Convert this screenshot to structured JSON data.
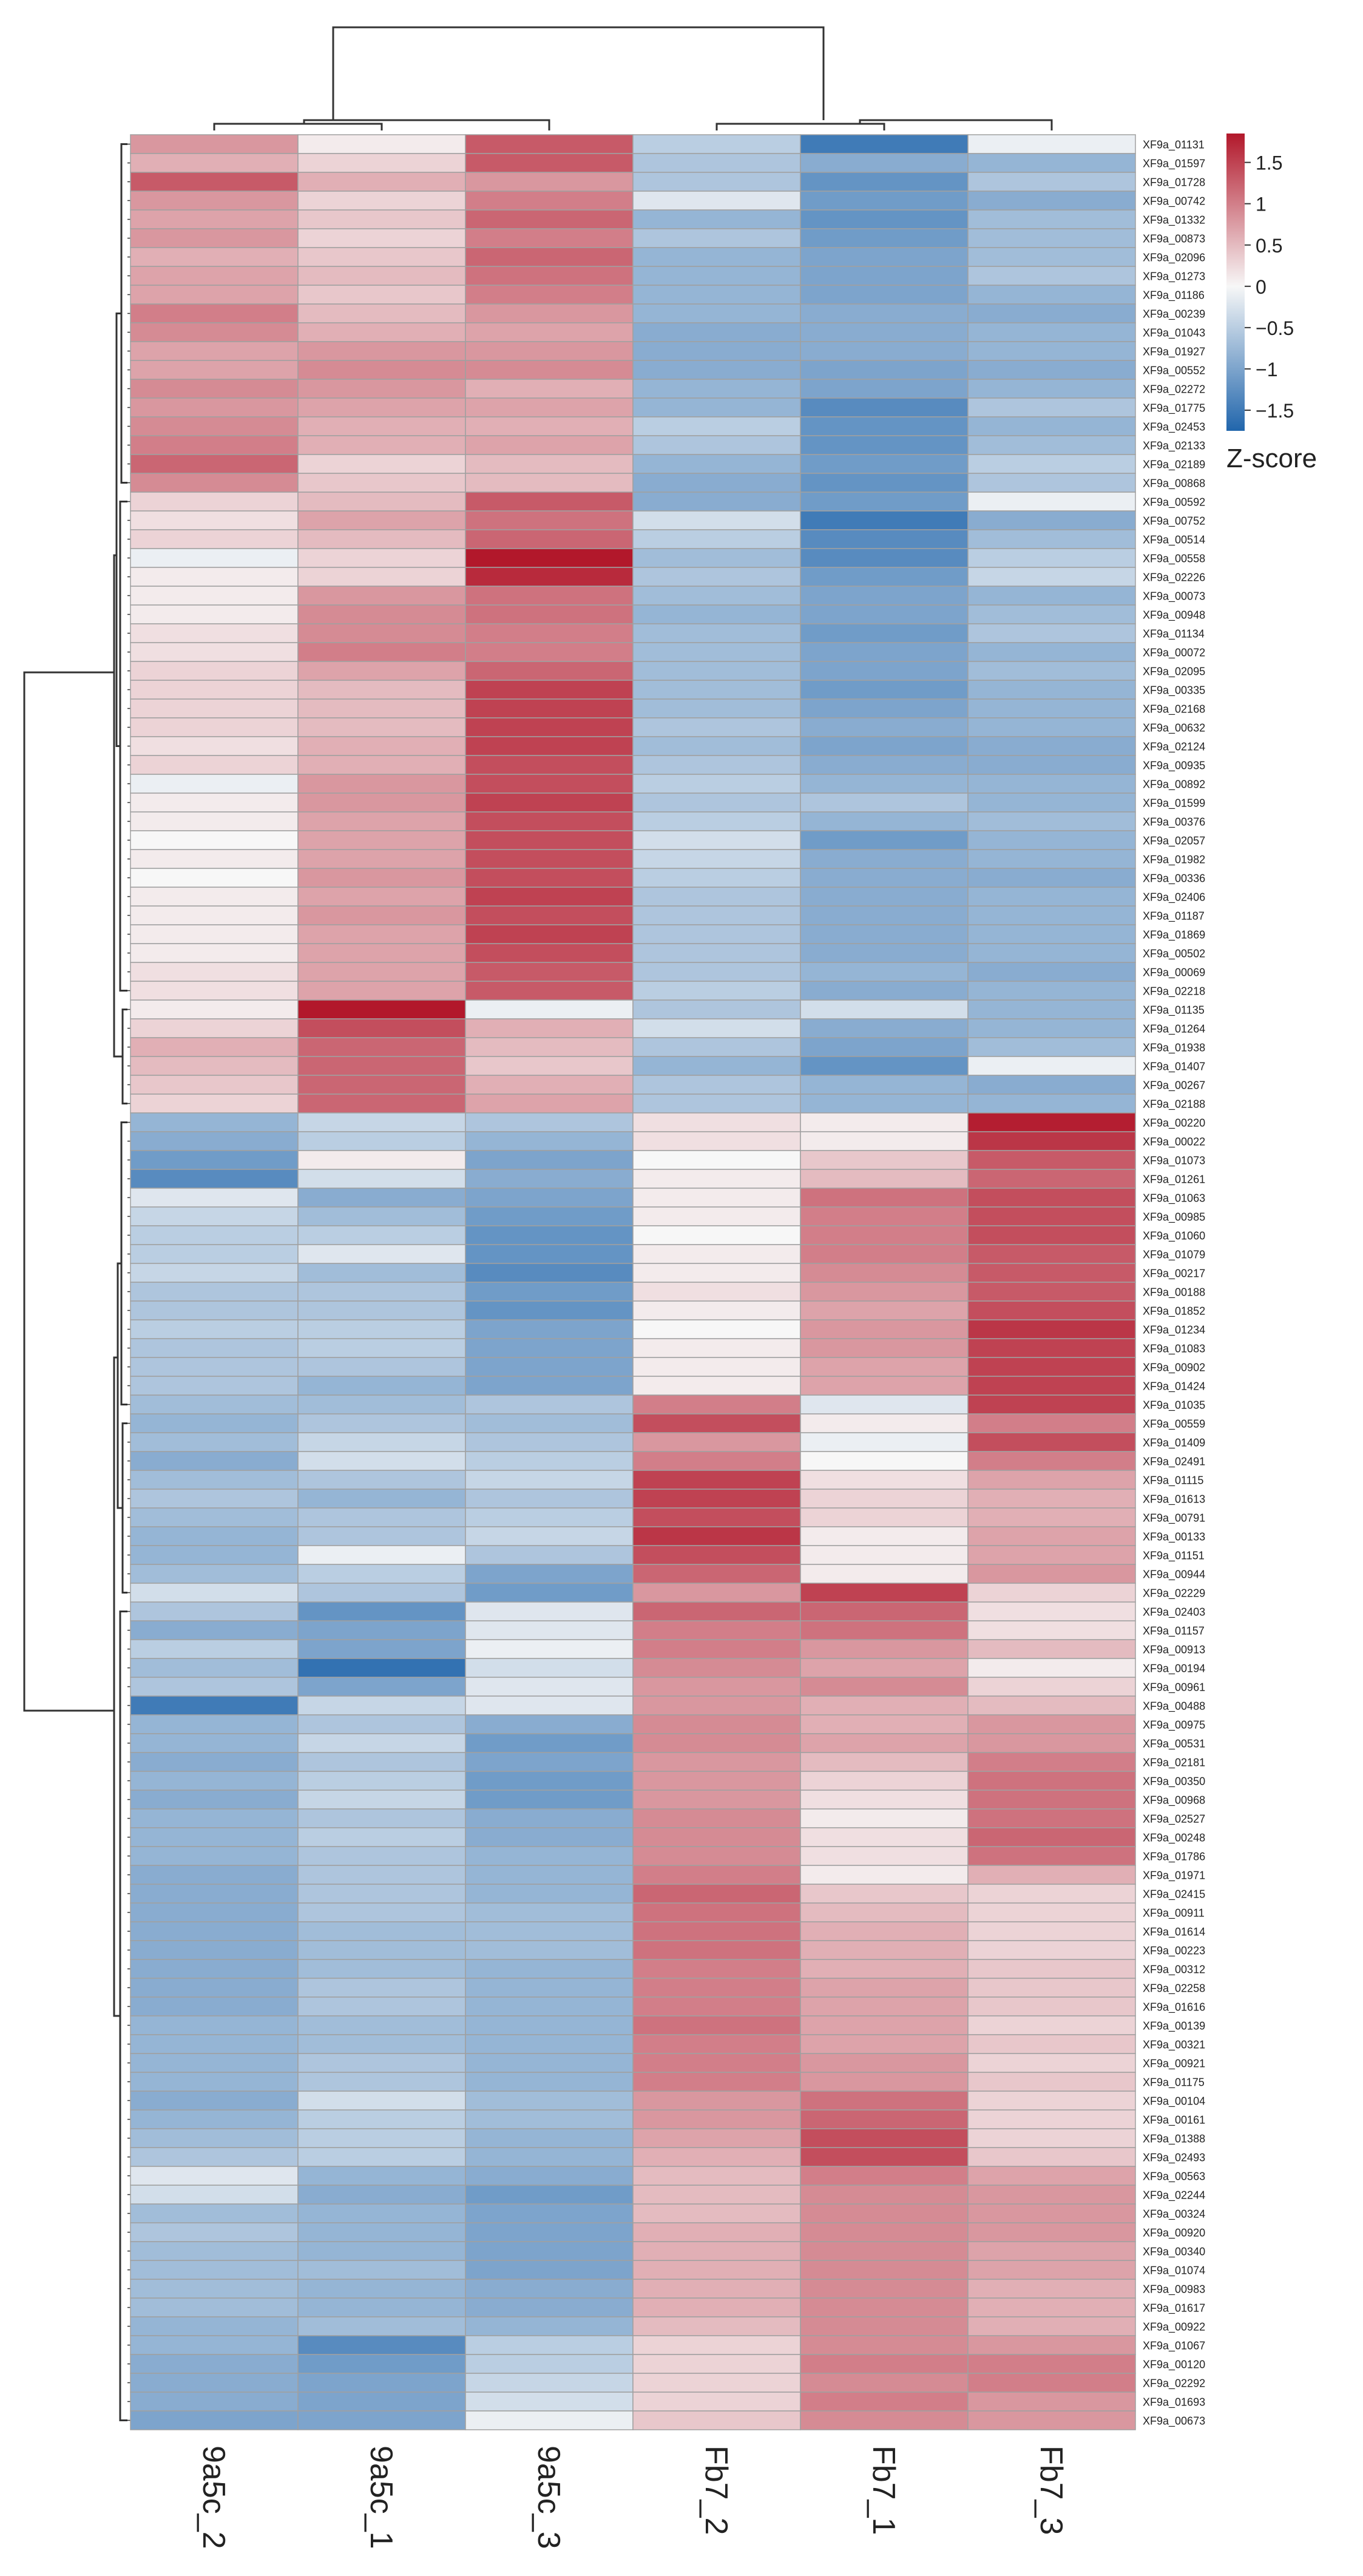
{
  "chart_data": {
    "type": "heatmap",
    "title": "",
    "columns": [
      "9a5c_2",
      "9a5c_1",
      "9a5c_3",
      "Fb7_2",
      "Fb7_1",
      "Fb7_3"
    ],
    "rows": [
      "XF9a_01131",
      "XF9a_01597",
      "XF9a_01728",
      "XF9a_00742",
      "XF9a_01332",
      "XF9a_00873",
      "XF9a_02096",
      "XF9a_01273",
      "XF9a_01186",
      "XF9a_00239",
      "XF9a_01043",
      "XF9a_01927",
      "XF9a_00552",
      "XF9a_02272",
      "XF9a_01775",
      "XF9a_02453",
      "XF9a_02133",
      "XF9a_02189",
      "XF9a_00868",
      "XF9a_00592",
      "XF9a_00752",
      "XF9a_00514",
      "XF9a_00558",
      "XF9a_02226",
      "XF9a_00073",
      "XF9a_00948",
      "XF9a_01134",
      "XF9a_00072",
      "XF9a_02095",
      "XF9a_00335",
      "XF9a_02168",
      "XF9a_00632",
      "XF9a_02124",
      "XF9a_00935",
      "XF9a_00892",
      "XF9a_01599",
      "XF9a_00376",
      "XF9a_02057",
      "XF9a_01982",
      "XF9a_00336",
      "XF9a_02406",
      "XF9a_01187",
      "XF9a_01869",
      "XF9a_00502",
      "XF9a_00069",
      "XF9a_02218",
      "XF9a_01135",
      "XF9a_01264",
      "XF9a_01938",
      "XF9a_01407",
      "XF9a_00267",
      "XF9a_02188",
      "XF9a_00220",
      "XF9a_00022",
      "XF9a_01073",
      "XF9a_01261",
      "XF9a_01063",
      "XF9a_00985",
      "XF9a_01060",
      "XF9a_01079",
      "XF9a_00217",
      "XF9a_00188",
      "XF9a_01852",
      "XF9a_01234",
      "XF9a_01083",
      "XF9a_00902",
      "XF9a_01424",
      "XF9a_01035",
      "XF9a_00559",
      "XF9a_01409",
      "XF9a_02491",
      "XF9a_01115",
      "XF9a_01613",
      "XF9a_00791",
      "XF9a_00133",
      "XF9a_01151",
      "XF9a_00944",
      "XF9a_02229",
      "XF9a_02403",
      "XF9a_01157",
      "XF9a_00913",
      "XF9a_00194",
      "XF9a_00961",
      "XF9a_00488",
      "XF9a_00975",
      "XF9a_00531",
      "XF9a_02181",
      "XF9a_00350",
      "XF9a_00968",
      "XF9a_02527",
      "XF9a_00248",
      "XF9a_01786",
      "XF9a_01971",
      "XF9a_02415",
      "XF9a_00911",
      "XF9a_01614",
      "XF9a_00223",
      "XF9a_00312",
      "XF9a_02258",
      "XF9a_01616",
      "XF9a_00139",
      "XF9a_00321",
      "XF9a_00921",
      "XF9a_01175",
      "XF9a_00104",
      "XF9a_00161",
      "XF9a_01388",
      "XF9a_02493",
      "XF9a_00563",
      "XF9a_02244",
      "XF9a_00324",
      "XF9a_00920",
      "XF9a_00340",
      "XF9a_01074",
      "XF9a_00983",
      "XF9a_01617",
      "XF9a_00922",
      "XF9a_01067",
      "XF9a_00120",
      "XF9a_02292",
      "XF9a_01693",
      "XF9a_00673"
    ],
    "values": [
      [
        0.8,
        0.1,
        1.3,
        -0.5,
        -1.5,
        -0.1
      ],
      [
        0.6,
        0.3,
        1.3,
        -0.6,
        -0.9,
        -0.8
      ],
      [
        1.3,
        0.6,
        0.8,
        -0.6,
        -1.2,
        -0.6
      ],
      [
        0.8,
        0.3,
        1.0,
        -0.2,
        -1.1,
        -0.9
      ],
      [
        0.7,
        0.4,
        1.2,
        -0.8,
        -1.2,
        -0.7
      ],
      [
        0.8,
        0.3,
        1.0,
        -0.6,
        -1.1,
        -0.7
      ],
      [
        0.6,
        0.4,
        1.2,
        -0.8,
        -1.0,
        -0.7
      ],
      [
        0.7,
        0.5,
        1.1,
        -0.8,
        -1.0,
        -0.6
      ],
      [
        0.7,
        0.4,
        1.0,
        -0.8,
        -1.0,
        -0.8
      ],
      [
        1.0,
        0.5,
        0.8,
        -0.8,
        -0.9,
        -0.9
      ],
      [
        0.9,
        0.6,
        0.7,
        -0.9,
        -0.9,
        -0.8
      ],
      [
        0.7,
        0.8,
        0.8,
        -0.9,
        -0.9,
        -0.8
      ],
      [
        0.7,
        0.9,
        0.9,
        -0.9,
        -1.0,
        -0.9
      ],
      [
        0.9,
        0.8,
        0.6,
        -0.8,
        -1.0,
        -0.8
      ],
      [
        0.8,
        0.7,
        0.7,
        -0.8,
        -1.3,
        -0.6
      ],
      [
        0.9,
        0.6,
        0.6,
        -0.5,
        -1.2,
        -0.8
      ],
      [
        1.0,
        0.6,
        0.7,
        -0.6,
        -1.2,
        -0.7
      ],
      [
        1.2,
        0.3,
        0.5,
        -0.8,
        -1.1,
        -0.5
      ],
      [
        0.9,
        0.4,
        0.5,
        -0.9,
        -1.2,
        -0.6
      ],
      [
        0.3,
        0.5,
        1.3,
        -0.9,
        -1.1,
        -0.1
      ],
      [
        0.2,
        0.7,
        1.1,
        -0.3,
        -1.5,
        -0.9
      ],
      [
        0.3,
        0.5,
        1.2,
        -0.5,
        -1.3,
        -0.7
      ],
      [
        -0.1,
        0.3,
        1.9,
        -0.7,
        -1.3,
        -0.5
      ],
      [
        0.1,
        0.3,
        1.7,
        -0.6,
        -1.1,
        -0.4
      ],
      [
        0.1,
        0.8,
        1.1,
        -0.7,
        -1.0,
        -0.8
      ],
      [
        0.1,
        0.9,
        1.1,
        -0.8,
        -1.0,
        -0.7
      ],
      [
        0.2,
        0.9,
        1.0,
        -0.7,
        -1.1,
        -0.6
      ],
      [
        0.2,
        1.0,
        1.0,
        -0.7,
        -1.0,
        -0.8
      ],
      [
        0.3,
        0.7,
        1.2,
        -0.7,
        -1.0,
        -0.7
      ],
      [
        0.3,
        0.5,
        1.5,
        -0.7,
        -1.1,
        -0.8
      ],
      [
        0.3,
        0.5,
        1.5,
        -0.7,
        -1.0,
        -0.8
      ],
      [
        0.3,
        0.5,
        1.5,
        -0.6,
        -0.9,
        -0.8
      ],
      [
        0.2,
        0.6,
        1.5,
        -0.7,
        -1.0,
        -0.9
      ],
      [
        0.3,
        0.6,
        1.4,
        -0.6,
        -0.9,
        -0.9
      ],
      [
        -0.1,
        0.8,
        1.4,
        -0.5,
        -0.8,
        -0.8
      ],
      [
        0.1,
        0.8,
        1.5,
        -0.6,
        -0.6,
        -0.8
      ],
      [
        0.1,
        0.7,
        1.4,
        -0.5,
        -0.8,
        -0.7
      ],
      [
        0.0,
        0.7,
        1.4,
        -0.3,
        -1.1,
        -0.8
      ],
      [
        0.1,
        0.7,
        1.4,
        -0.4,
        -0.9,
        -0.8
      ],
      [
        0.0,
        0.8,
        1.4,
        -0.5,
        -0.9,
        -0.9
      ],
      [
        0.1,
        0.7,
        1.5,
        -0.6,
        -0.9,
        -0.8
      ],
      [
        0.1,
        0.8,
        1.4,
        -0.6,
        -0.9,
        -0.8
      ],
      [
        0.1,
        0.7,
        1.5,
        -0.6,
        -0.9,
        -0.8
      ],
      [
        0.1,
        0.7,
        1.4,
        -0.6,
        -0.9,
        -0.8
      ],
      [
        0.2,
        0.7,
        1.3,
        -0.6,
        -0.8,
        -0.9
      ],
      [
        0.2,
        0.7,
        1.3,
        -0.5,
        -0.9,
        -0.8
      ],
      [
        0.1,
        1.9,
        -0.1,
        -0.6,
        -0.3,
        -0.8
      ],
      [
        0.3,
        1.4,
        0.6,
        -0.3,
        -0.9,
        -0.8
      ],
      [
        0.6,
        1.2,
        0.5,
        -0.6,
        -1.0,
        -0.7
      ],
      [
        0.5,
        1.2,
        0.4,
        -0.8,
        -1.2,
        -0.1
      ],
      [
        0.4,
        1.2,
        0.6,
        -0.6,
        -0.8,
        -0.9
      ],
      [
        0.3,
        1.2,
        0.7,
        -0.6,
        -0.8,
        -0.8
      ],
      [
        -0.8,
        -0.4,
        -0.6,
        0.2,
        0.1,
        1.8
      ],
      [
        -0.9,
        -0.5,
        -0.8,
        0.2,
        0.1,
        1.6
      ],
      [
        -1.1,
        0.1,
        -1.0,
        0.0,
        0.4,
        1.3
      ],
      [
        -1.3,
        -0.3,
        -0.9,
        0.1,
        0.5,
        1.2
      ],
      [
        -0.2,
        -0.9,
        -1.0,
        0.1,
        1.1,
        1.4
      ],
      [
        -0.4,
        -0.7,
        -1.1,
        0.1,
        1.0,
        1.4
      ],
      [
        -0.5,
        -0.5,
        -1.2,
        0.0,
        1.0,
        1.4
      ],
      [
        -0.5,
        -0.2,
        -1.2,
        0.1,
        1.0,
        1.3
      ],
      [
        -0.4,
        -0.7,
        -1.3,
        0.1,
        0.9,
        1.3
      ],
      [
        -0.6,
        -0.6,
        -1.1,
        0.2,
        0.8,
        1.3
      ],
      [
        -0.6,
        -0.6,
        -1.2,
        0.1,
        0.7,
        1.4
      ],
      [
        -0.5,
        -0.5,
        -1.0,
        0.0,
        0.8,
        1.6
      ],
      [
        -0.6,
        -0.5,
        -1.0,
        0.1,
        0.8,
        1.5
      ],
      [
        -0.6,
        -0.6,
        -1.0,
        0.1,
        0.7,
        1.5
      ],
      [
        -0.6,
        -0.8,
        -1.0,
        0.1,
        0.7,
        1.5
      ],
      [
        -0.7,
        -0.7,
        -0.6,
        1.0,
        -0.2,
        1.5
      ],
      [
        -0.8,
        -0.6,
        -0.7,
        1.4,
        0.1,
        1.0
      ],
      [
        -0.7,
        -0.4,
        -0.6,
        0.8,
        -0.1,
        1.4
      ],
      [
        -0.9,
        -0.3,
        -0.5,
        1.0,
        0.0,
        1.0
      ],
      [
        -0.7,
        -0.6,
        -0.4,
        1.5,
        0.2,
        0.7
      ],
      [
        -0.6,
        -0.8,
        -0.6,
        1.5,
        0.3,
        0.6
      ],
      [
        -0.7,
        -0.6,
        -0.5,
        1.4,
        0.3,
        0.6
      ],
      [
        -0.8,
        -0.6,
        -0.4,
        1.6,
        0.1,
        0.7
      ],
      [
        -0.8,
        -0.1,
        -0.6,
        1.4,
        0.1,
        0.7
      ],
      [
        -0.7,
        -0.5,
        -1.0,
        1.2,
        0.1,
        0.8
      ],
      [
        -0.3,
        -0.6,
        -1.1,
        0.8,
        1.5,
        0.3
      ],
      [
        -0.6,
        -1.2,
        -0.2,
        1.2,
        1.2,
        0.2
      ],
      [
        -0.9,
        -1.0,
        -0.2,
        1.0,
        1.1,
        0.2
      ],
      [
        -0.5,
        -1.0,
        -0.1,
        1.0,
        0.8,
        0.5
      ],
      [
        -0.7,
        -1.6,
        -0.3,
        0.9,
        0.7,
        0.1
      ],
      [
        -0.6,
        -1.0,
        -0.2,
        0.8,
        0.9,
        0.3
      ],
      [
        -1.5,
        -0.4,
        -0.2,
        0.8,
        0.6,
        0.5
      ],
      [
        -0.8,
        -0.6,
        -0.9,
        0.9,
        0.6,
        0.8
      ],
      [
        -0.8,
        -0.4,
        -1.1,
        0.9,
        0.7,
        0.8
      ],
      [
        -0.9,
        -0.6,
        -1.0,
        0.8,
        0.5,
        1.0
      ],
      [
        -0.8,
        -0.5,
        -1.1,
        0.8,
        0.3,
        1.1
      ],
      [
        -0.9,
        -0.4,
        -1.1,
        0.8,
        0.2,
        1.1
      ],
      [
        -0.8,
        -0.6,
        -0.9,
        0.9,
        0.1,
        1.1
      ],
      [
        -0.8,
        -0.5,
        -0.9,
        0.9,
        0.2,
        1.2
      ],
      [
        -0.8,
        -0.6,
        -0.8,
        0.9,
        0.2,
        1.1
      ],
      [
        -0.9,
        -0.6,
        -0.8,
        1.0,
        0.1,
        0.6
      ],
      [
        -0.9,
        -0.6,
        -0.8,
        1.2,
        0.4,
        0.3
      ],
      [
        -0.9,
        -0.6,
        -0.7,
        1.1,
        0.5,
        0.3
      ],
      [
        -0.9,
        -0.7,
        -0.7,
        1.1,
        0.6,
        0.3
      ],
      [
        -0.9,
        -0.7,
        -0.7,
        1.1,
        0.6,
        0.3
      ],
      [
        -0.9,
        -0.7,
        -0.8,
        1.0,
        0.6,
        0.4
      ],
      [
        -0.9,
        -0.6,
        -0.8,
        1.0,
        0.7,
        0.4
      ],
      [
        -0.9,
        -0.6,
        -0.8,
        1.0,
        0.7,
        0.4
      ],
      [
        -0.8,
        -0.7,
        -0.8,
        1.1,
        0.7,
        0.3
      ],
      [
        -0.8,
        -0.7,
        -0.8,
        1.0,
        0.7,
        0.4
      ],
      [
        -0.8,
        -0.6,
        -0.8,
        1.0,
        0.8,
        0.3
      ],
      [
        -0.8,
        -0.6,
        -0.8,
        1.0,
        0.8,
        0.4
      ],
      [
        -0.9,
        -0.3,
        -0.7,
        0.8,
        1.1,
        0.3
      ],
      [
        -0.8,
        -0.5,
        -0.7,
        0.8,
        1.2,
        0.3
      ],
      [
        -0.7,
        -0.5,
        -0.8,
        0.7,
        1.4,
        0.3
      ],
      [
        -0.6,
        -0.5,
        -0.8,
        0.6,
        1.4,
        0.4
      ],
      [
        -0.2,
        -0.8,
        -0.9,
        0.5,
        1.0,
        0.7
      ],
      [
        -0.3,
        -0.9,
        -1.1,
        0.5,
        0.9,
        0.8
      ],
      [
        -0.7,
        -0.8,
        -1.0,
        0.5,
        0.9,
        0.8
      ],
      [
        -0.6,
        -0.8,
        -1.0,
        0.6,
        0.9,
        0.8
      ],
      [
        -0.7,
        -0.8,
        -1.0,
        0.6,
        0.9,
        0.7
      ],
      [
        -0.7,
        -0.7,
        -1.0,
        0.6,
        0.9,
        0.7
      ],
      [
        -0.7,
        -0.8,
        -0.9,
        0.6,
        0.9,
        0.6
      ],
      [
        -0.7,
        -0.8,
        -0.9,
        0.6,
        0.9,
        0.6
      ],
      [
        -0.8,
        -0.7,
        -0.8,
        0.5,
        0.9,
        0.6
      ],
      [
        -0.8,
        -1.3,
        -0.5,
        0.3,
        0.9,
        0.8
      ],
      [
        -0.9,
        -1.1,
        -0.5,
        0.3,
        1.0,
        1.0
      ],
      [
        -0.9,
        -1.0,
        -0.4,
        0.3,
        0.9,
        1.0
      ],
      [
        -0.9,
        -1.0,
        -0.3,
        0.3,
        1.0,
        0.8
      ],
      [
        -1.0,
        -1.0,
        -0.1,
        0.4,
        0.9,
        0.8
      ]
    ],
    "colorbar": {
      "label": "Z-score",
      "ticks": [
        1.5,
        1,
        0.5,
        0,
        -0.5,
        -1,
        -1.5
      ],
      "tick_labels": [
        "1.5",
        "1",
        "0.5",
        "0",
        "−0.5",
        "−1",
        "−1.5"
      ],
      "range": [
        -1.75,
        1.85
      ],
      "low_color": "#2166ac",
      "mid_color": "#f7f7f7",
      "high_color": "#b2182b"
    },
    "row_dendrogram": true,
    "column_dendrogram": true,
    "legend_position": "top-right"
  }
}
